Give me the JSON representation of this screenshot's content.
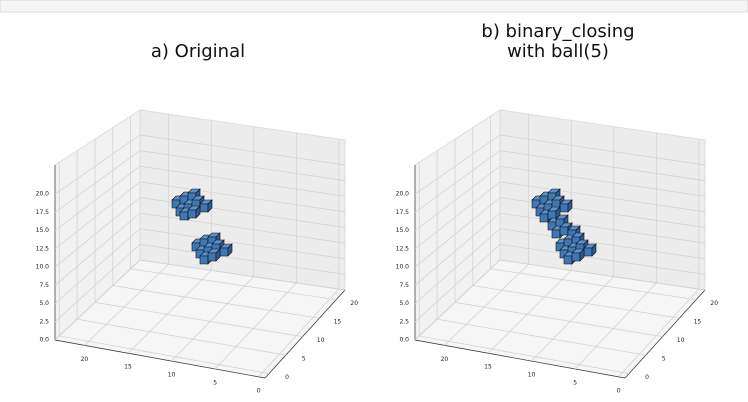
{
  "chart_data": [
    {
      "type": "voxel",
      "title": [
        "a) Original"
      ],
      "color": "#3f76b4",
      "xticks": [
        0,
        5,
        10,
        15,
        20
      ],
      "yticks": [
        0,
        5,
        10,
        15,
        20
      ],
      "zticks": [
        {
          "value": 0,
          "label": "0.0"
        },
        {
          "value": 2.5,
          "label": "2.5"
        },
        {
          "value": 5,
          "label": "5.0"
        },
        {
          "value": 7.5,
          "label": "7.5"
        },
        {
          "value": 10,
          "label": "10.0"
        },
        {
          "value": 12.5,
          "label": "12.5"
        },
        {
          "value": 15,
          "label": "15.0"
        },
        {
          "value": 17.5,
          "label": "17.5"
        },
        {
          "value": 20,
          "label": "20.0"
        }
      ]
    },
    {
      "type": "voxel",
      "title": [
        "b) binary_closing",
        "with ball(5)"
      ],
      "color": "#3f76b4",
      "xticks": [
        0,
        5,
        10,
        15,
        20
      ],
      "yticks": [
        0,
        5,
        10,
        15,
        20
      ],
      "zticks": [
        {
          "value": 0,
          "label": "0.0"
        },
        {
          "value": 2.5,
          "label": "2.5"
        },
        {
          "value": 5,
          "label": "5.0"
        },
        {
          "value": 7.5,
          "label": "7.5"
        },
        {
          "value": 10,
          "label": "10.0"
        },
        {
          "value": 12.5,
          "label": "12.5"
        },
        {
          "value": 15,
          "label": "15.0"
        },
        {
          "value": 17.5,
          "label": "17.5"
        },
        {
          "value": 20,
          "label": "20.0"
        }
      ]
    }
  ]
}
